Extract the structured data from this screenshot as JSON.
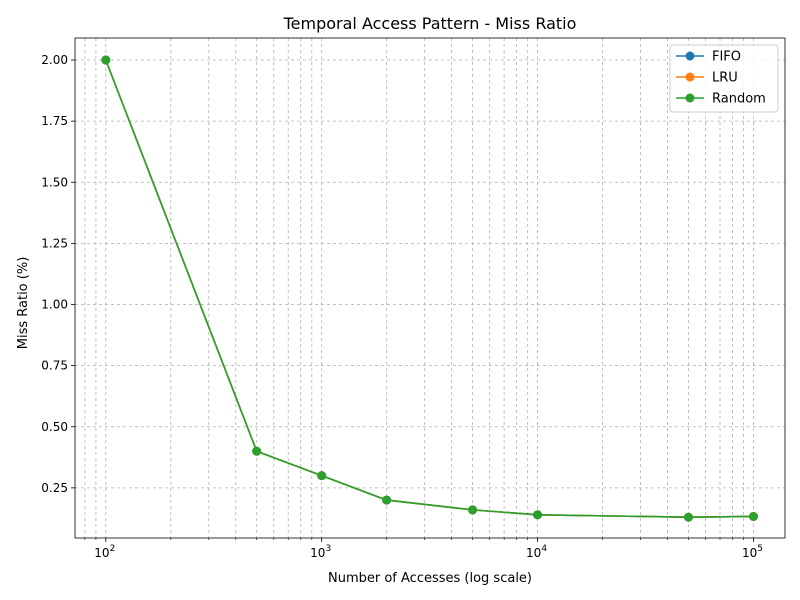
{
  "chart_data": {
    "type": "line",
    "title": "Temporal Access Pattern - Miss Ratio",
    "xlabel": "Number of Accesses (log scale)",
    "ylabel": "Miss Ratio (%)",
    "xscale": "log",
    "grid": "on (major and minor)",
    "legend_position": "top-right",
    "x": [
      100,
      500,
      1000,
      2000,
      5000,
      10000,
      50000,
      100000
    ],
    "xlim": [
      72,
      140000
    ],
    "ylim": [
      0.045,
      2.09
    ],
    "x_ticks": [
      {
        "value": 100,
        "base": "10",
        "exp": "2"
      },
      {
        "value": 1000,
        "base": "10",
        "exp": "3"
      },
      {
        "value": 10000,
        "base": "10",
        "exp": "4"
      },
      {
        "value": 100000,
        "base": "10",
        "exp": "5"
      }
    ],
    "y_ticks": [
      {
        "value": 0.25,
        "label": "0.25"
      },
      {
        "value": 0.5,
        "label": "0.50"
      },
      {
        "value": 0.75,
        "label": "0.75"
      },
      {
        "value": 1.0,
        "label": "1.00"
      },
      {
        "value": 1.25,
        "label": "1.25"
      },
      {
        "value": 1.5,
        "label": "1.50"
      },
      {
        "value": 1.75,
        "label": "1.75"
      },
      {
        "value": 2.0,
        "label": "2.00"
      }
    ],
    "series": [
      {
        "name": "FIFO",
        "color": "#1f77b4",
        "values": [
          2.0,
          0.4,
          0.3,
          0.2,
          0.16,
          0.14,
          0.13,
          0.133
        ]
      },
      {
        "name": "LRU",
        "color": "#ff7f0e",
        "values": [
          2.0,
          0.4,
          0.3,
          0.2,
          0.16,
          0.14,
          0.13,
          0.133
        ]
      },
      {
        "name": "Random",
        "color": "#2ca02c",
        "values": [
          2.0,
          0.4,
          0.3,
          0.2,
          0.16,
          0.14,
          0.13,
          0.133
        ]
      }
    ]
  }
}
